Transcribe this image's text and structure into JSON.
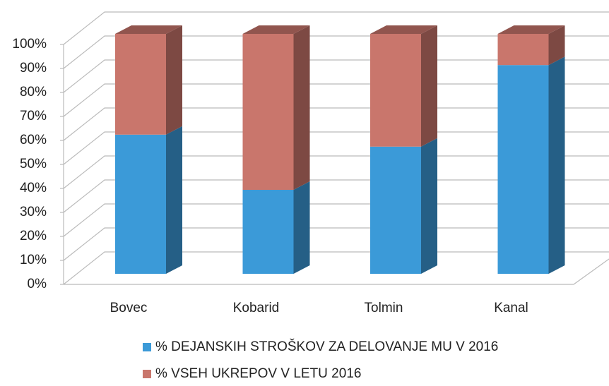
{
  "chart_data": {
    "type": "bar",
    "stacked": true,
    "three_d": true,
    "categories": [
      "Bovec",
      "Kobarid",
      "Tolmin",
      "Kanal"
    ],
    "series": [
      {
        "name": "% DEJANSKIH STROŠKOV ZA DELOVANJE MU V 2016",
        "color": "#3b9ad8",
        "values": [
          58,
          35,
          53,
          87
        ]
      },
      {
        "name": "% VSEH UKREPOV V LETU 2016",
        "color": "#c9766c",
        "values": [
          42,
          65,
          47,
          13
        ]
      }
    ],
    "ylim": [
      0,
      100
    ],
    "yticks": [
      {
        "value": 0,
        "label": "0%"
      },
      {
        "value": 10,
        "label": "10%"
      },
      {
        "value": 20,
        "label": "20%"
      },
      {
        "value": 30,
        "label": "30%"
      },
      {
        "value": 40,
        "label": "40%"
      },
      {
        "value": 50,
        "label": "50%"
      },
      {
        "value": 60,
        "label": "60%"
      },
      {
        "value": 70,
        "label": "70%"
      },
      {
        "value": 80,
        "label": "80%"
      },
      {
        "value": 90,
        "label": "90%"
      },
      {
        "value": 100,
        "label": "100%"
      }
    ],
    "grid": true
  }
}
